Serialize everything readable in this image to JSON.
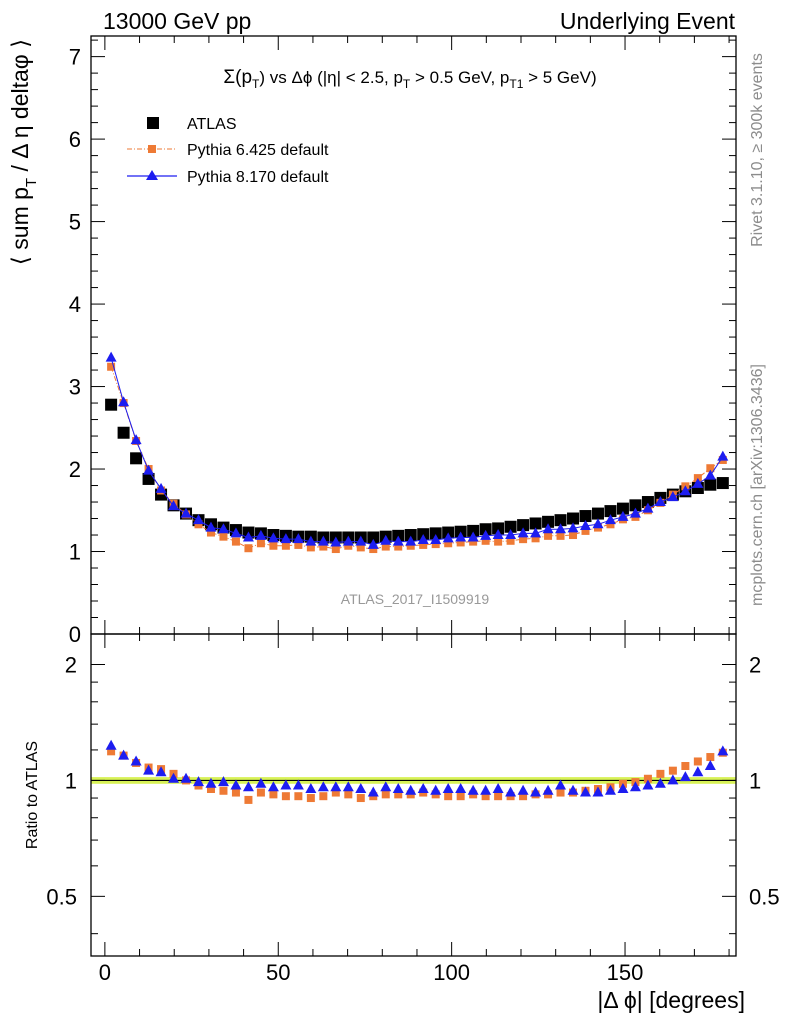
{
  "header": {
    "left": "13000 GeV pp",
    "right": "Underlying Event"
  },
  "side_labels": {
    "rivet": "Rivet 3.1.10, ≥ 300k events",
    "mcplots": "mcplots.cern.ch [arXiv:1306.3436]"
  },
  "chart_data": [
    {
      "type": "scatter",
      "title": "Σ(p_T) vs Δϕ (|η| < 2.5, p_T > 0.5 GeV, p_T1 > 5 GeV)",
      "analysis_label": "ATLAS_2017_I1509919",
      "ylabel": "⟨ sum p_T / Δ η deltaϕ ⟩",
      "xlabel": "",
      "xlim": [
        -4,
        182
      ],
      "ylim": [
        0,
        7.25
      ],
      "yticks": [
        "0",
        "1",
        "2",
        "3",
        "4",
        "5",
        "6",
        "7"
      ],
      "xticks": [
        0,
        50,
        100,
        150
      ],
      "legend": {
        "placement": "top-left"
      },
      "x": [
        1.8,
        5.4,
        9,
        12.6,
        16.2,
        19.8,
        23.4,
        27,
        30.6,
        34.2,
        37.8,
        41.4,
        45,
        48.6,
        52.2,
        55.8,
        59.4,
        63,
        66.6,
        70.2,
        73.8,
        77.4,
        81,
        84.6,
        88.2,
        91.8,
        95.4,
        99,
        102.6,
        106.2,
        109.8,
        113.4,
        117,
        120.6,
        124.2,
        127.8,
        131.4,
        135,
        138.6,
        142.2,
        145.8,
        149.4,
        153,
        156.6,
        160.2,
        163.8,
        167.4,
        171,
        174.6,
        178.2
      ],
      "series": [
        {
          "name": "ATLAS",
          "color": "#000000",
          "marker": "square",
          "values": [
            2.78,
            2.44,
            2.13,
            1.88,
            1.69,
            1.56,
            1.46,
            1.38,
            1.33,
            1.29,
            1.26,
            1.23,
            1.22,
            1.2,
            1.19,
            1.18,
            1.18,
            1.17,
            1.17,
            1.17,
            1.17,
            1.17,
            1.18,
            1.19,
            1.2,
            1.21,
            1.22,
            1.23,
            1.24,
            1.25,
            1.27,
            1.28,
            1.3,
            1.32,
            1.34,
            1.36,
            1.38,
            1.4,
            1.43,
            1.46,
            1.49,
            1.52,
            1.56,
            1.6,
            1.65,
            1.69,
            1.73,
            1.77,
            1.81,
            1.83
          ]
        },
        {
          "name": "Pythia 6.425 default",
          "color": "#ee7a35",
          "marker": "square",
          "values": [
            3.24,
            2.8,
            2.34,
            2.0,
            1.74,
            1.58,
            1.45,
            1.33,
            1.23,
            1.18,
            1.12,
            1.04,
            1.1,
            1.07,
            1.07,
            1.08,
            1.05,
            1.06,
            1.03,
            1.07,
            1.05,
            1.03,
            1.06,
            1.06,
            1.07,
            1.08,
            1.09,
            1.1,
            1.11,
            1.12,
            1.13,
            1.12,
            1.13,
            1.15,
            1.16,
            1.19,
            1.19,
            1.2,
            1.25,
            1.29,
            1.33,
            1.39,
            1.42,
            1.5,
            1.59,
            1.69,
            1.79,
            1.89,
            2.01,
            2.11
          ]
        },
        {
          "name": "Pythia 8.170 default",
          "color": "#1d1df0",
          "marker": "triangle",
          "values": [
            3.35,
            2.81,
            2.35,
            1.98,
            1.76,
            1.55,
            1.46,
            1.38,
            1.29,
            1.27,
            1.22,
            1.17,
            1.19,
            1.16,
            1.15,
            1.15,
            1.12,
            1.12,
            1.11,
            1.12,
            1.12,
            1.08,
            1.13,
            1.12,
            1.12,
            1.14,
            1.14,
            1.16,
            1.17,
            1.17,
            1.19,
            1.2,
            1.2,
            1.22,
            1.22,
            1.27,
            1.27,
            1.28,
            1.31,
            1.33,
            1.38,
            1.42,
            1.46,
            1.52,
            1.6,
            1.66,
            1.73,
            1.82,
            1.92,
            2.15
          ]
        }
      ]
    },
    {
      "type": "scatter",
      "title": "",
      "ylabel": "Ratio to ATLAS",
      "xlabel": "|Δ ϕ| [degrees]",
      "xlim": [
        -4,
        182
      ],
      "ylim": [
        0.35,
        2.4
      ],
      "yticks": [
        0.5,
        1,
        2
      ],
      "ytick_labels": [
        "0.5",
        "1",
        "2"
      ],
      "xticks": [
        0,
        50,
        100,
        150
      ],
      "xtick_labels": [
        "0",
        "50",
        "100",
        "150"
      ],
      "band_color": "#d8f257",
      "reference_line": 1,
      "series": [
        {
          "name": "Pythia 6.425 default",
          "color": "#ee7a35",
          "marker": "square",
          "values": [
            1.19,
            1.16,
            1.11,
            1.08,
            1.07,
            1.04,
            1.0,
            0.97,
            0.95,
            0.94,
            0.93,
            0.89,
            0.93,
            0.92,
            0.91,
            0.91,
            0.9,
            0.91,
            0.93,
            0.92,
            0.9,
            0.91,
            0.92,
            0.92,
            0.92,
            0.93,
            0.92,
            0.91,
            0.91,
            0.92,
            0.91,
            0.91,
            0.91,
            0.91,
            0.92,
            0.92,
            0.93,
            0.93,
            0.94,
            0.95,
            0.96,
            0.98,
            0.99,
            1.01,
            1.04,
            1.06,
            1.09,
            1.12,
            1.15,
            1.18
          ]
        },
        {
          "name": "Pythia 8.170 default",
          "color": "#1d1df0",
          "marker": "triangle",
          "values": [
            1.23,
            1.16,
            1.12,
            1.06,
            1.05,
            1.01,
            1.01,
            0.99,
            0.98,
            0.99,
            0.97,
            0.96,
            0.98,
            0.96,
            0.97,
            0.97,
            0.95,
            0.96,
            0.96,
            0.96,
            0.95,
            0.93,
            0.96,
            0.95,
            0.94,
            0.95,
            0.94,
            0.95,
            0.95,
            0.94,
            0.94,
            0.95,
            0.93,
            0.94,
            0.93,
            0.94,
            0.97,
            0.94,
            0.93,
            0.93,
            0.94,
            0.95,
            0.96,
            0.97,
            0.98,
            1.0,
            1.02,
            1.05,
            1.09,
            1.19
          ]
        }
      ]
    }
  ]
}
